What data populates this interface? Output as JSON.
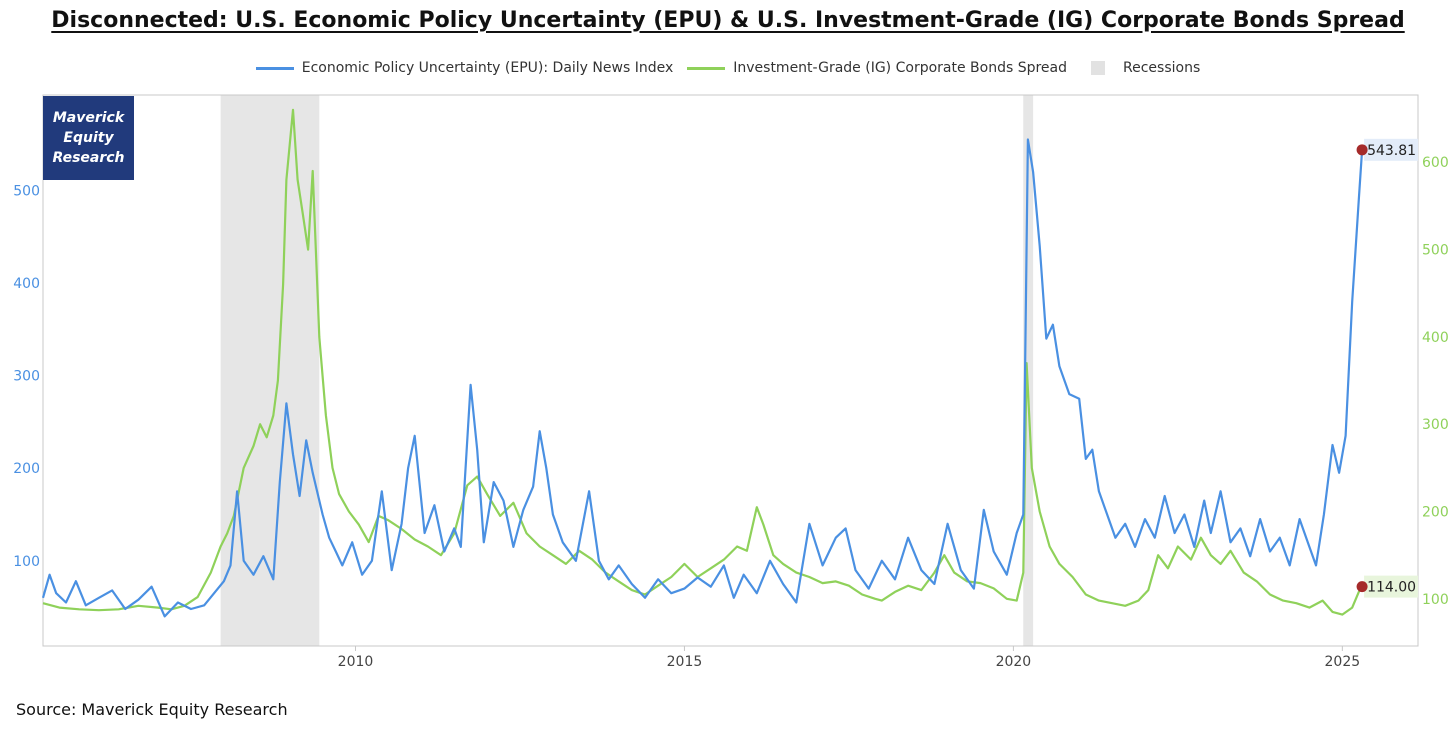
{
  "title": "Disconnected: U.S. Economic Policy Uncertainty (EPU) & U.S. Investment-Grade (IG) Corporate Bonds Spread",
  "source": "Source: Maverick Equity Research",
  "logo": {
    "line1": "Maverick",
    "line2": "Equity",
    "line3": "Research"
  },
  "legend": {
    "epu": "Economic Policy Uncertainty (EPU): Daily News Index",
    "ig": "Investment-Grade (IG) Corporate Bonds Spread",
    "recessions": "Recessions"
  },
  "colors": {
    "epu": "#4a90e2",
    "ig": "#8fd15a",
    "recession": "#e6e6e6",
    "marker": "#a52a2a",
    "axis_left": "#4a90e2",
    "axis_right": "#8fd15a"
  },
  "chart_data": {
    "type": "line",
    "title": "Disconnected: U.S. Economic Policy Uncertainty (EPU) & U.S. Investment-Grade (IG) Corporate Bonds Spread",
    "x_range": [
      2005.25,
      2026.15
    ],
    "x_ticks": [
      "2010",
      "2015",
      "2020",
      "2025"
    ],
    "y_left": {
      "range": [
        8,
        603
      ],
      "ticks": [
        "100",
        "200",
        "300",
        "400",
        "500"
      ]
    },
    "y_right": {
      "range": [
        46,
        677
      ],
      "ticks": [
        "100",
        "200",
        "300",
        "400",
        "500",
        "600"
      ]
    },
    "recessions": [
      [
        2007.95,
        2009.45
      ],
      [
        2020.15,
        2020.3
      ]
    ],
    "series": [
      {
        "name": "Economic Policy Uncertainty (EPU): Daily News Index",
        "axis": "left",
        "points": [
          [
            2005.25,
            60
          ],
          [
            2005.35,
            85
          ],
          [
            2005.45,
            65
          ],
          [
            2005.6,
            55
          ],
          [
            2005.75,
            78
          ],
          [
            2005.9,
            52
          ],
          [
            2006.1,
            60
          ],
          [
            2006.3,
            68
          ],
          [
            2006.5,
            48
          ],
          [
            2006.7,
            58
          ],
          [
            2006.9,
            72
          ],
          [
            2007.1,
            40
          ],
          [
            2007.3,
            55
          ],
          [
            2007.5,
            48
          ],
          [
            2007.7,
            52
          ],
          [
            2007.85,
            65
          ],
          [
            2008.0,
            78
          ],
          [
            2008.1,
            95
          ],
          [
            2008.2,
            175
          ],
          [
            2008.3,
            100
          ],
          [
            2008.45,
            85
          ],
          [
            2008.6,
            105
          ],
          [
            2008.75,
            80
          ],
          [
            2008.85,
            185
          ],
          [
            2008.95,
            270
          ],
          [
            2009.05,
            215
          ],
          [
            2009.15,
            170
          ],
          [
            2009.25,
            230
          ],
          [
            2009.35,
            195
          ],
          [
            2009.5,
            150
          ],
          [
            2009.6,
            125
          ],
          [
            2009.7,
            110
          ],
          [
            2009.8,
            95
          ],
          [
            2009.95,
            120
          ],
          [
            2010.1,
            85
          ],
          [
            2010.25,
            100
          ],
          [
            2010.4,
            175
          ],
          [
            2010.55,
            90
          ],
          [
            2010.7,
            140
          ],
          [
            2010.8,
            200
          ],
          [
            2010.9,
            235
          ],
          [
            2011.05,
            130
          ],
          [
            2011.2,
            160
          ],
          [
            2011.35,
            110
          ],
          [
            2011.5,
            135
          ],
          [
            2011.6,
            115
          ],
          [
            2011.75,
            290
          ],
          [
            2011.85,
            220
          ],
          [
            2011.95,
            120
          ],
          [
            2012.1,
            185
          ],
          [
            2012.25,
            165
          ],
          [
            2012.4,
            115
          ],
          [
            2012.55,
            155
          ],
          [
            2012.7,
            180
          ],
          [
            2012.8,
            240
          ],
          [
            2012.9,
            200
          ],
          [
            2013.0,
            150
          ],
          [
            2013.15,
            120
          ],
          [
            2013.35,
            100
          ],
          [
            2013.55,
            175
          ],
          [
            2013.7,
            100
          ],
          [
            2013.85,
            80
          ],
          [
            2014.0,
            95
          ],
          [
            2014.2,
            75
          ],
          [
            2014.4,
            60
          ],
          [
            2014.6,
            80
          ],
          [
            2014.8,
            65
          ],
          [
            2015.0,
            70
          ],
          [
            2015.2,
            82
          ],
          [
            2015.4,
            72
          ],
          [
            2015.6,
            95
          ],
          [
            2015.75,
            60
          ],
          [
            2015.9,
            85
          ],
          [
            2016.1,
            65
          ],
          [
            2016.3,
            100
          ],
          [
            2016.5,
            75
          ],
          [
            2016.7,
            55
          ],
          [
            2016.9,
            140
          ],
          [
            2017.1,
            95
          ],
          [
            2017.3,
            125
          ],
          [
            2017.45,
            135
          ],
          [
            2017.6,
            90
          ],
          [
            2017.8,
            70
          ],
          [
            2018.0,
            100
          ],
          [
            2018.2,
            80
          ],
          [
            2018.4,
            125
          ],
          [
            2018.6,
            90
          ],
          [
            2018.8,
            75
          ],
          [
            2019.0,
            140
          ],
          [
            2019.2,
            90
          ],
          [
            2019.4,
            70
          ],
          [
            2019.55,
            155
          ],
          [
            2019.7,
            110
          ],
          [
            2019.9,
            85
          ],
          [
            2020.05,
            130
          ],
          [
            2020.15,
            150
          ],
          [
            2020.22,
            555
          ],
          [
            2020.3,
            520
          ],
          [
            2020.4,
            440
          ],
          [
            2020.5,
            340
          ],
          [
            2020.6,
            355
          ],
          [
            2020.7,
            310
          ],
          [
            2020.85,
            280
          ],
          [
            2021.0,
            275
          ],
          [
            2021.1,
            210
          ],
          [
            2021.2,
            220
          ],
          [
            2021.3,
            175
          ],
          [
            2021.4,
            155
          ],
          [
            2021.55,
            125
          ],
          [
            2021.7,
            140
          ],
          [
            2021.85,
            115
          ],
          [
            2022.0,
            145
          ],
          [
            2022.15,
            125
          ],
          [
            2022.3,
            170
          ],
          [
            2022.45,
            130
          ],
          [
            2022.6,
            150
          ],
          [
            2022.75,
            115
          ],
          [
            2022.9,
            165
          ],
          [
            2023.0,
            130
          ],
          [
            2023.15,
            175
          ],
          [
            2023.3,
            120
          ],
          [
            2023.45,
            135
          ],
          [
            2023.6,
            105
          ],
          [
            2023.75,
            145
          ],
          [
            2023.9,
            110
          ],
          [
            2024.05,
            125
          ],
          [
            2024.2,
            95
          ],
          [
            2024.35,
            145
          ],
          [
            2024.5,
            115
          ],
          [
            2024.6,
            95
          ],
          [
            2024.72,
            150
          ],
          [
            2024.85,
            225
          ],
          [
            2024.95,
            195
          ],
          [
            2025.05,
            235
          ],
          [
            2025.15,
            380
          ],
          [
            2025.25,
            490
          ],
          [
            2025.3,
            543.81
          ]
        ]
      },
      {
        "name": "Investment-Grade (IG) Corporate Bonds Spread",
        "axis": "right",
        "points": [
          [
            2005.25,
            95
          ],
          [
            2005.5,
            90
          ],
          [
            2005.8,
            88
          ],
          [
            2006.1,
            87
          ],
          [
            2006.4,
            88
          ],
          [
            2006.7,
            92
          ],
          [
            2007.0,
            90
          ],
          [
            2007.2,
            88
          ],
          [
            2007.4,
            92
          ],
          [
            2007.6,
            102
          ],
          [
            2007.8,
            130
          ],
          [
            2007.95,
            160
          ],
          [
            2008.05,
            175
          ],
          [
            2008.15,
            195
          ],
          [
            2008.3,
            250
          ],
          [
            2008.45,
            275
          ],
          [
            2008.55,
            300
          ],
          [
            2008.65,
            285
          ],
          [
            2008.75,
            310
          ],
          [
            2008.82,
            350
          ],
          [
            2008.9,
            460
          ],
          [
            2008.95,
            580
          ],
          [
            2009.0,
            620
          ],
          [
            2009.05,
            660
          ],
          [
            2009.12,
            580
          ],
          [
            2009.2,
            540
          ],
          [
            2009.28,
            500
          ],
          [
            2009.35,
            590
          ],
          [
            2009.45,
            400
          ],
          [
            2009.55,
            310
          ],
          [
            2009.65,
            250
          ],
          [
            2009.75,
            220
          ],
          [
            2009.9,
            200
          ],
          [
            2010.05,
            185
          ],
          [
            2010.2,
            165
          ],
          [
            2010.35,
            195
          ],
          [
            2010.5,
            190
          ],
          [
            2010.7,
            180
          ],
          [
            2010.9,
            168
          ],
          [
            2011.1,
            160
          ],
          [
            2011.3,
            150
          ],
          [
            2011.5,
            175
          ],
          [
            2011.7,
            230
          ],
          [
            2011.85,
            240
          ],
          [
            2012.0,
            220
          ],
          [
            2012.2,
            195
          ],
          [
            2012.4,
            210
          ],
          [
            2012.6,
            175
          ],
          [
            2012.8,
            160
          ],
          [
            2013.0,
            150
          ],
          [
            2013.2,
            140
          ],
          [
            2013.4,
            155
          ],
          [
            2013.6,
            145
          ],
          [
            2013.8,
            130
          ],
          [
            2014.0,
            120
          ],
          [
            2014.2,
            110
          ],
          [
            2014.4,
            105
          ],
          [
            2014.6,
            115
          ],
          [
            2014.8,
            125
          ],
          [
            2015.0,
            140
          ],
          [
            2015.2,
            125
          ],
          [
            2015.4,
            135
          ],
          [
            2015.6,
            145
          ],
          [
            2015.8,
            160
          ],
          [
            2015.95,
            155
          ],
          [
            2016.1,
            205
          ],
          [
            2016.2,
            185
          ],
          [
            2016.35,
            150
          ],
          [
            2016.5,
            140
          ],
          [
            2016.7,
            130
          ],
          [
            2016.9,
            125
          ],
          [
            2017.1,
            118
          ],
          [
            2017.3,
            120
          ],
          [
            2017.5,
            115
          ],
          [
            2017.7,
            105
          ],
          [
            2017.9,
            100
          ],
          [
            2018.0,
            98
          ],
          [
            2018.2,
            108
          ],
          [
            2018.4,
            115
          ],
          [
            2018.6,
            110
          ],
          [
            2018.8,
            130
          ],
          [
            2018.95,
            150
          ],
          [
            2019.1,
            130
          ],
          [
            2019.3,
            120
          ],
          [
            2019.5,
            118
          ],
          [
            2019.7,
            112
          ],
          [
            2019.9,
            100
          ],
          [
            2020.05,
            98
          ],
          [
            2020.15,
            130
          ],
          [
            2020.2,
            370
          ],
          [
            2020.28,
            250
          ],
          [
            2020.4,
            200
          ],
          [
            2020.55,
            160
          ],
          [
            2020.7,
            140
          ],
          [
            2020.9,
            125
          ],
          [
            2021.1,
            105
          ],
          [
            2021.3,
            98
          ],
          [
            2021.5,
            95
          ],
          [
            2021.7,
            92
          ],
          [
            2021.9,
            98
          ],
          [
            2022.05,
            110
          ],
          [
            2022.2,
            150
          ],
          [
            2022.35,
            135
          ],
          [
            2022.5,
            160
          ],
          [
            2022.7,
            145
          ],
          [
            2022.85,
            170
          ],
          [
            2023.0,
            150
          ],
          [
            2023.15,
            140
          ],
          [
            2023.3,
            155
          ],
          [
            2023.5,
            130
          ],
          [
            2023.7,
            120
          ],
          [
            2023.9,
            105
          ],
          [
            2024.1,
            98
          ],
          [
            2024.3,
            95
          ],
          [
            2024.5,
            90
          ],
          [
            2024.7,
            98
          ],
          [
            2024.85,
            85
          ],
          [
            2025.0,
            82
          ],
          [
            2025.15,
            90
          ],
          [
            2025.25,
            108
          ],
          [
            2025.3,
            114
          ]
        ]
      }
    ],
    "annotations": [
      {
        "series": "Economic Policy Uncertainty (EPU): Daily News Index",
        "x": 2025.3,
        "y": 543.81,
        "label": "543.81"
      },
      {
        "series": "Investment-Grade (IG) Corporate Bonds Spread",
        "x": 2025.3,
        "y": 114,
        "label": "114.00"
      }
    ]
  }
}
